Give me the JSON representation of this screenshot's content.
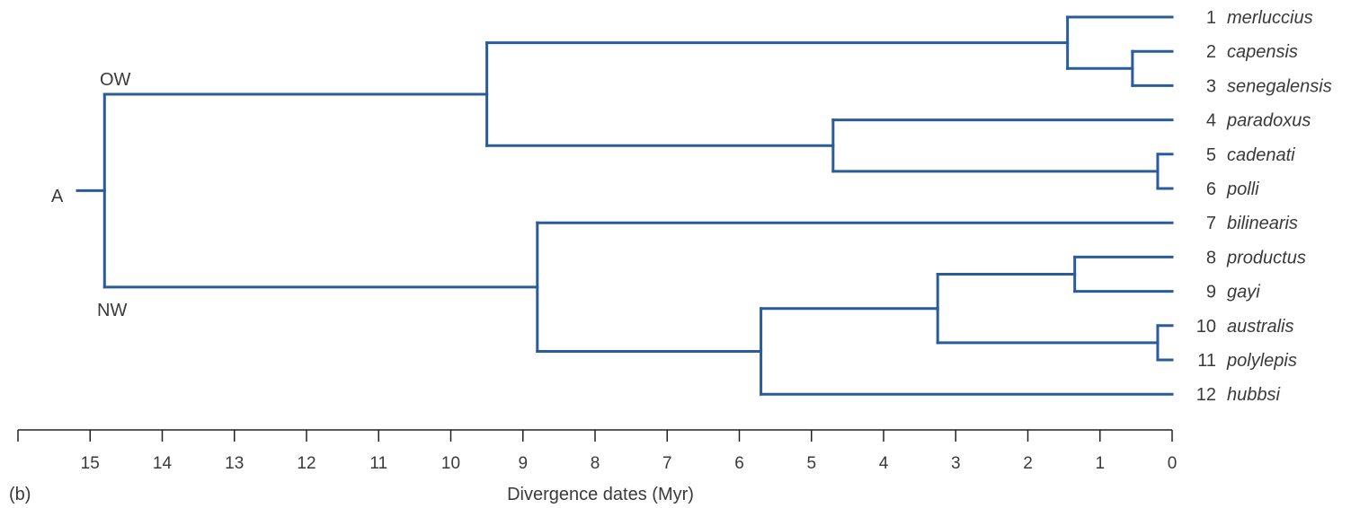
{
  "colors": {
    "branch": "#2a5c9a",
    "text": "#3a3a3a",
    "axis": "#222222"
  },
  "panel_label": "(b)",
  "root_label": "A",
  "clade_labels": {
    "old_world": "OW",
    "new_world": "NW"
  },
  "leaves": [
    {
      "num": "1",
      "name": "merluccius"
    },
    {
      "num": "2",
      "name": "capensis"
    },
    {
      "num": "3",
      "name": "senegalensis"
    },
    {
      "num": "4",
      "name": "paradoxus"
    },
    {
      "num": "5",
      "name": "cadenati"
    },
    {
      "num": "6",
      "name": "polli"
    },
    {
      "num": "7",
      "name": "bilinearis"
    },
    {
      "num": "8",
      "name": "productus"
    },
    {
      "num": "9",
      "name": "gayi"
    },
    {
      "num": "10",
      "name": "australis"
    },
    {
      "num": "11",
      "name": "polylepis"
    },
    {
      "num": "12",
      "name": "hubbsi"
    }
  ],
  "tree": {
    "age": 14.8,
    "children": [
      {
        "age": 9.5,
        "children": [
          {
            "age": 1.45,
            "children": [
              {
                "leaf": 0
              },
              {
                "age": 0.55,
                "children": [
                  {
                    "leaf": 1
                  },
                  {
                    "leaf": 2
                  }
                ]
              }
            ]
          },
          {
            "age": 4.7,
            "children": [
              {
                "leaf": 3
              },
              {
                "age": 0.2,
                "children": [
                  {
                    "leaf": 4
                  },
                  {
                    "leaf": 5
                  }
                ]
              }
            ]
          }
        ]
      },
      {
        "age": 8.8,
        "children": [
          {
            "leaf": 6
          },
          {
            "age": 5.7,
            "children": [
              {
                "age": 3.25,
                "children": [
                  {
                    "age": 1.35,
                    "children": [
                      {
                        "leaf": 7
                      },
                      {
                        "leaf": 8
                      }
                    ]
                  },
                  {
                    "age": 0.2,
                    "children": [
                      {
                        "leaf": 9
                      },
                      {
                        "leaf": 10
                      }
                    ]
                  }
                ]
              },
              {
                "leaf": 11
              }
            ]
          }
        ]
      }
    ]
  },
  "axis": {
    "title": "Divergence dates (Myr)",
    "ticks": [
      15,
      14,
      13,
      12,
      11,
      10,
      9,
      8,
      7,
      6,
      5,
      4,
      3,
      2,
      1,
      0
    ],
    "range": [
      16,
      0
    ]
  }
}
